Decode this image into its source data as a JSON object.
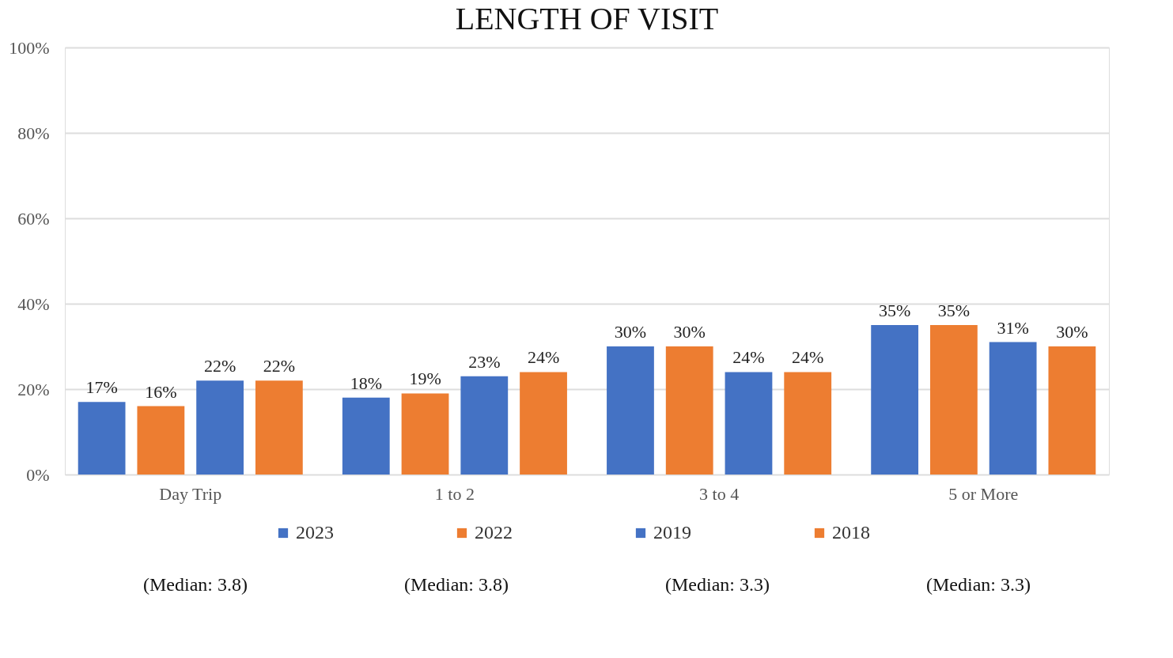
{
  "chart_data": {
    "type": "bar",
    "title": "LENGTH OF VISIT",
    "categories": [
      "Day Trip",
      "1 to 2",
      "3 to 4",
      "5 or More"
    ],
    "series": [
      {
        "name": "2023",
        "color": "#4472c4",
        "values": [
          17,
          18,
          30,
          35
        ],
        "value_labels": [
          "17%",
          "18%",
          "30%",
          "35%"
        ]
      },
      {
        "name": "2022",
        "color": "#ed7d31",
        "values": [
          16,
          19,
          30,
          35
        ],
        "value_labels": [
          "16%",
          "19%",
          "30%",
          "35%"
        ]
      },
      {
        "name": "2019",
        "color": "#4472c4",
        "values": [
          22,
          23,
          24,
          31
        ],
        "value_labels": [
          "22%",
          "23%",
          "24%",
          "31%"
        ]
      },
      {
        "name": "2018",
        "color": "#ed7d31",
        "values": [
          22,
          24,
          24,
          30
        ],
        "value_labels": [
          "22%",
          "24%",
          "24%",
          "30%"
        ]
      }
    ],
    "ylim": [
      0,
      100
    ],
    "yticks": [
      {
        "value": 0,
        "label": "0%"
      },
      {
        "value": 20,
        "label": "20%"
      },
      {
        "value": 40,
        "label": "40%"
      },
      {
        "value": 60,
        "label": "60%"
      },
      {
        "value": 80,
        "label": "80%"
      },
      {
        "value": 100,
        "label": "100%"
      }
    ],
    "grid": "y",
    "legend": "bottom",
    "annotations": [
      "(Median: 3.8)",
      "(Median: 3.8)",
      "(Median: 3.3)",
      "(Median: 3.3)"
    ]
  }
}
